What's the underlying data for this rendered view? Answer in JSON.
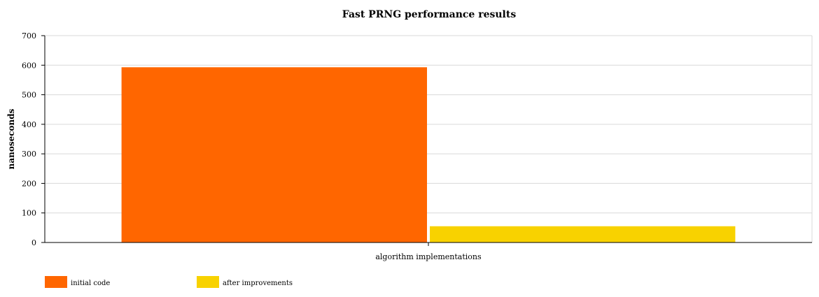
{
  "chart_data": {
    "type": "bar",
    "title": "Fast PRNG performance results",
    "xlabel": "",
    "ylabel": "nanoseconds",
    "categories": [
      "algorithm implementations"
    ],
    "series": [
      {
        "name": "initial code",
        "values": [
          593
        ],
        "color": "#ff6600"
      },
      {
        "name": "after improvements",
        "values": [
          55
        ],
        "color": "#f8d200"
      }
    ],
    "ylim": [
      0,
      700
    ],
    "yticks": [
      0,
      100,
      200,
      300,
      400,
      500,
      600,
      700
    ],
    "grid": true,
    "legend_position": "bottom-left"
  }
}
